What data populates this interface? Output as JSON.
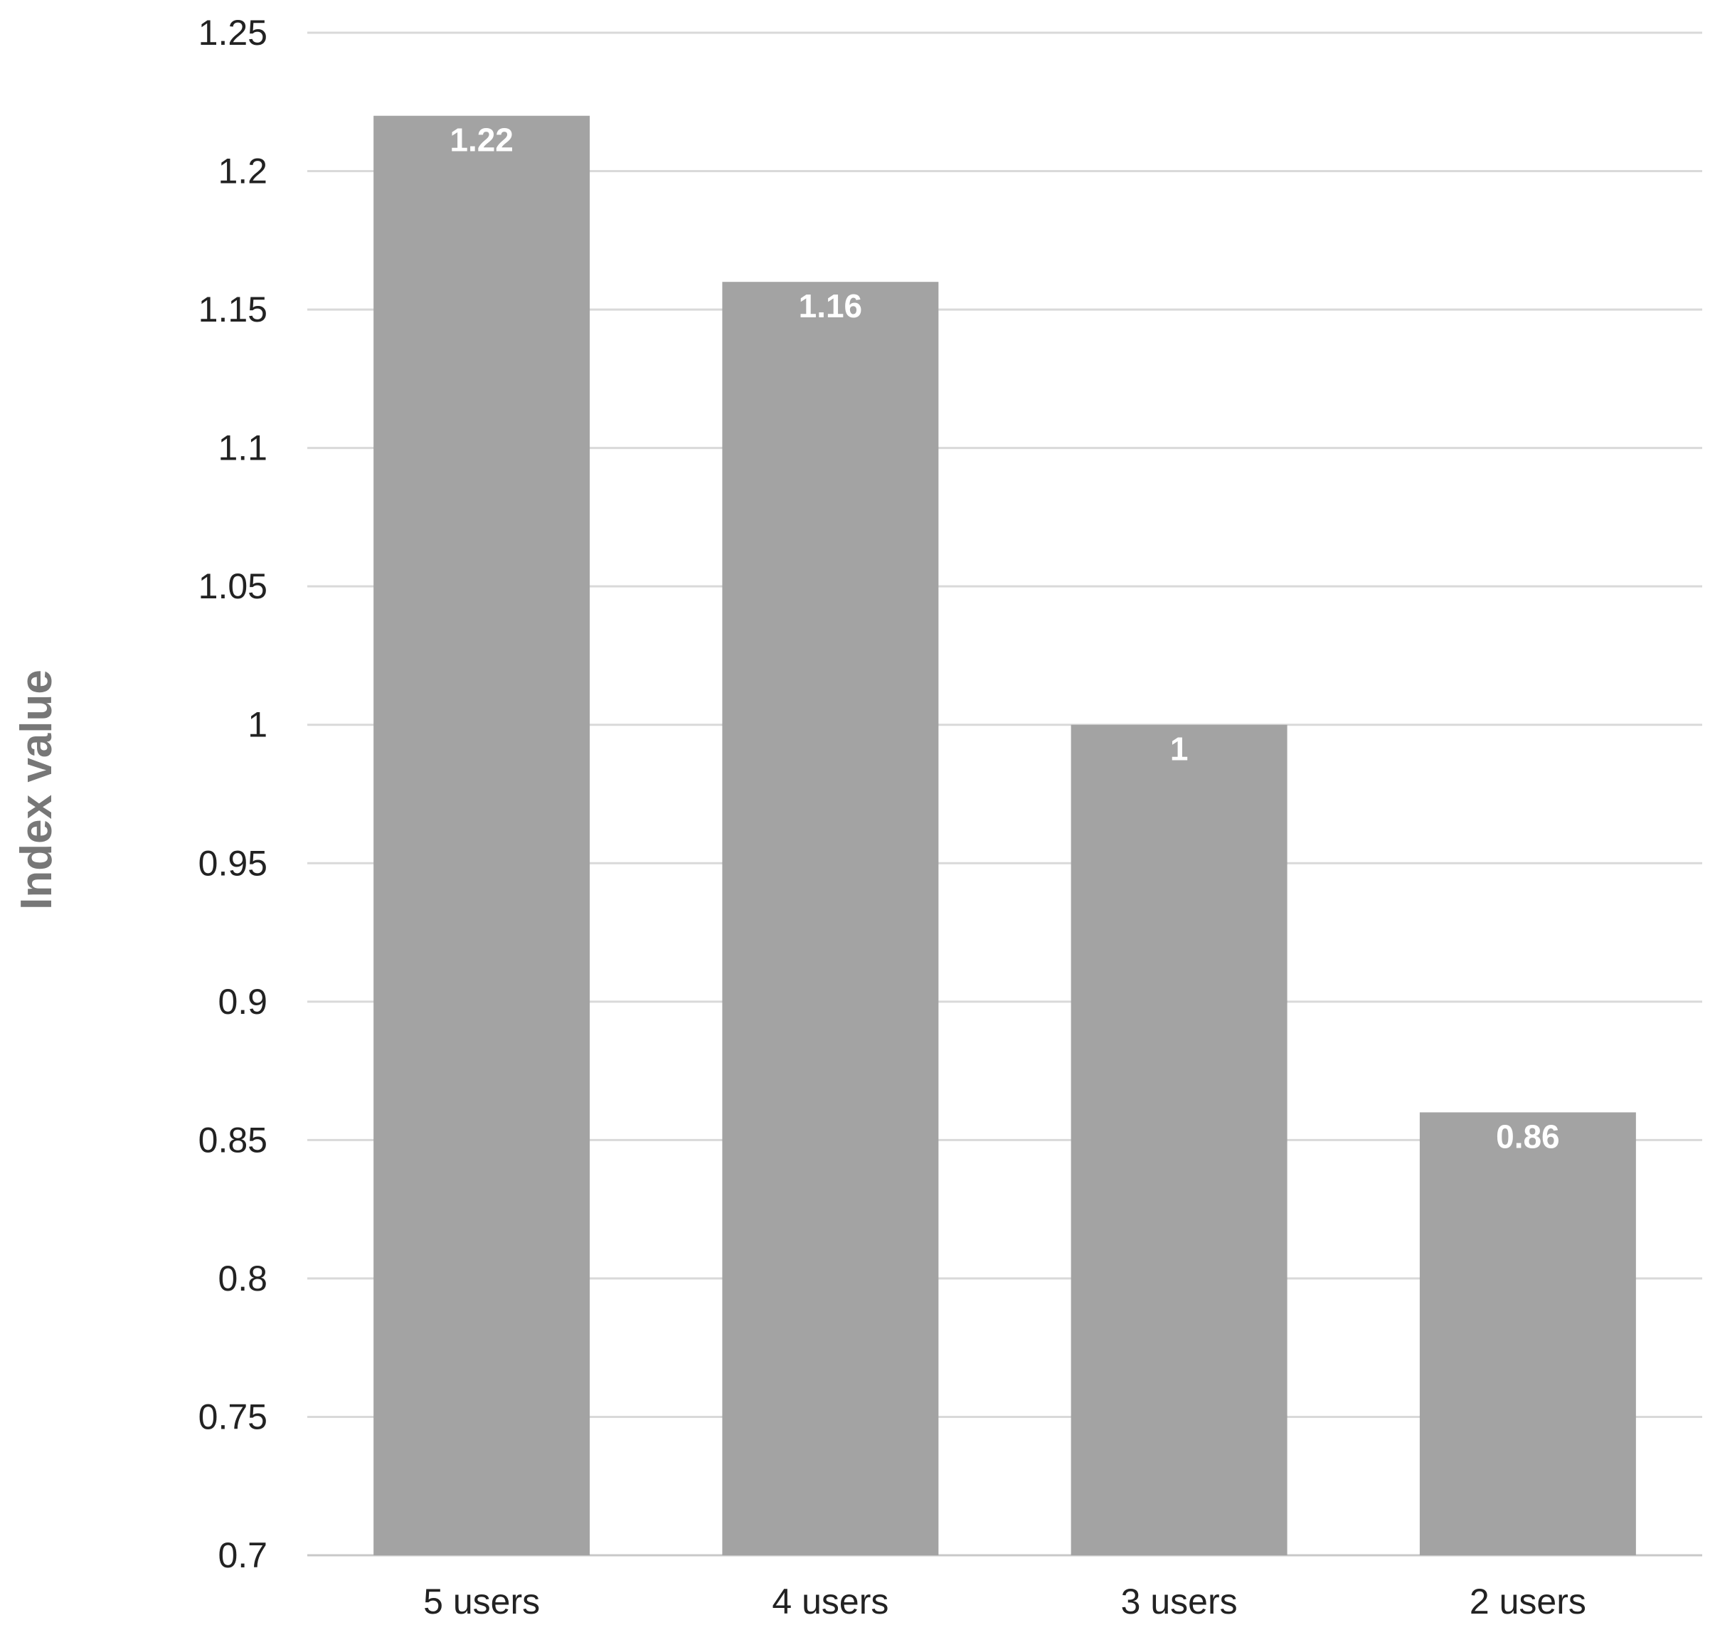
{
  "chart_data": {
    "type": "bar",
    "categories": [
      "5 users",
      "4 users",
      "3 users",
      "2 users"
    ],
    "values": [
      1.22,
      1.16,
      1,
      0.86
    ],
    "data_labels": [
      "1.22",
      "1.16",
      "1",
      "0.86"
    ],
    "title": "",
    "xlabel": "",
    "ylabel": "Index value",
    "ylim": [
      0.7,
      1.25
    ],
    "yticks": [
      0.7,
      0.75,
      0.8,
      0.85,
      0.9,
      0.95,
      1,
      1.05,
      1.1,
      1.15,
      1.2,
      1.25
    ],
    "ytick_labels": [
      "0.7",
      "0.75",
      "0.8",
      "0.85",
      "0.9",
      "0.95",
      "1",
      "1.05",
      "1.1",
      "1.15",
      "1.2",
      "1.25"
    ],
    "grid": true,
    "legend": "none",
    "colors": {
      "bar": "#a3a3a3",
      "grid": "#d9d9d9",
      "text": "#222222",
      "axis_title": "#777777",
      "data_label": "#ffffff"
    }
  }
}
